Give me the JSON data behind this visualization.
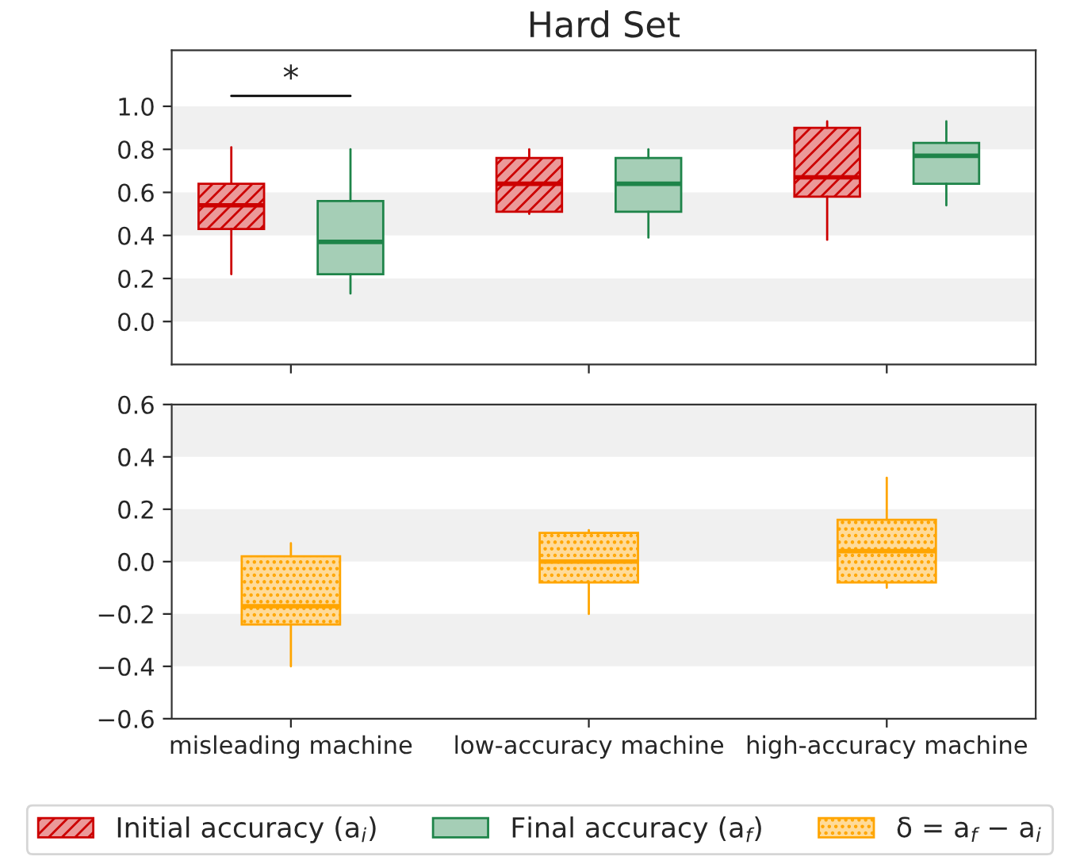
{
  "chart_data": [
    {
      "type": "box",
      "title": "Hard Set",
      "categories": [
        null,
        null,
        null
      ],
      "series": [
        {
          "name": "Initial accuracy (a$_{i}$)",
          "color": "#cc0000",
          "boxes": [
            {
              "low": 0.22,
              "q1": 0.43,
              "median": 0.54,
              "q3": 0.64,
              "high": 0.81
            },
            {
              "low": 0.5,
              "q1": 0.51,
              "median": 0.64,
              "q3": 0.76,
              "high": 0.8
            },
            {
              "low": 0.38,
              "q1": 0.58,
              "median": 0.67,
              "q3": 0.9,
              "high": 0.93
            }
          ]
        },
        {
          "name": "Final accuracy (a$_{f}$)",
          "color": "#1e8449",
          "boxes": [
            {
              "low": 0.13,
              "q1": 0.22,
              "median": 0.37,
              "q3": 0.56,
              "high": 0.8
            },
            {
              "low": 0.39,
              "q1": 0.51,
              "median": 0.64,
              "q3": 0.76,
              "high": 0.8
            },
            {
              "low": 0.54,
              "q1": 0.64,
              "median": 0.77,
              "q3": 0.83,
              "high": 0.93
            }
          ]
        }
      ],
      "ylim": [
        -0.2,
        1.26
      ],
      "yticks": [
        {
          "value": 0,
          "label": "0.0"
        },
        {
          "value": 0.2,
          "label": "0.2"
        },
        {
          "value": 0.4,
          "label": "0.4"
        },
        {
          "value": 0.6,
          "label": "0.6"
        },
        {
          "value": 0.8,
          "label": "0.8"
        },
        {
          "value": 1,
          "label": "1.0"
        }
      ],
      "bands": [
        {
          "axis": "y",
          "from": 0.8,
          "to": 1.0,
          "color": "#f0f0f0"
        },
        {
          "axis": "y",
          "from": 0.4,
          "to": 0.6,
          "color": "#f0f0f0"
        },
        {
          "axis": "y",
          "from": 0.0,
          "to": 0.2,
          "color": "#f0f0f0"
        }
      ],
      "annotations": [
        "*"
      ],
      "grid": false,
      "legend": "bottom"
    },
    {
      "type": "box",
      "categories": [
        "misleading machine",
        "low-accuracy machine",
        "high-accuracy machine"
      ],
      "series": [
        {
          "name": "δ = a$_{f}$ − a$_{i}$",
          "color": "#ffa500",
          "boxes": [
            {
              "low": -0.4,
              "q1": -0.24,
              "median": -0.17,
              "q3": 0.02,
              "high": 0.07
            },
            {
              "low": -0.2,
              "q1": -0.08,
              "median": 0.0,
              "q3": 0.11,
              "high": 0.12
            },
            {
              "low": -0.1,
              "q1": -0.08,
              "median": 0.04,
              "q3": 0.16,
              "high": 0.32
            }
          ]
        }
      ],
      "ylim": [
        -0.6,
        0.6
      ],
      "yticks": [
        {
          "value": -0.6,
          "label": "−0.6"
        },
        {
          "value": -0.4,
          "label": "−0.4"
        },
        {
          "value": -0.2,
          "label": "−0.2"
        },
        {
          "value": 0,
          "label": "0.0"
        },
        {
          "value": 0.2,
          "label": "0.2"
        },
        {
          "value": 0.4,
          "label": "0.4"
        },
        {
          "value": 0.6,
          "label": "0.6"
        }
      ],
      "bands": [
        {
          "axis": "y",
          "from": 0.4,
          "to": 0.6,
          "color": "#f0f0f0"
        },
        {
          "axis": "y",
          "from": 0.0,
          "to": 0.2,
          "color": "#f0f0f0"
        },
        {
          "axis": "y",
          "from": -0.4,
          "to": -0.2,
          "color": "#f0f0f0"
        }
      ],
      "grid": false,
      "legend": "bottom"
    }
  ]
}
